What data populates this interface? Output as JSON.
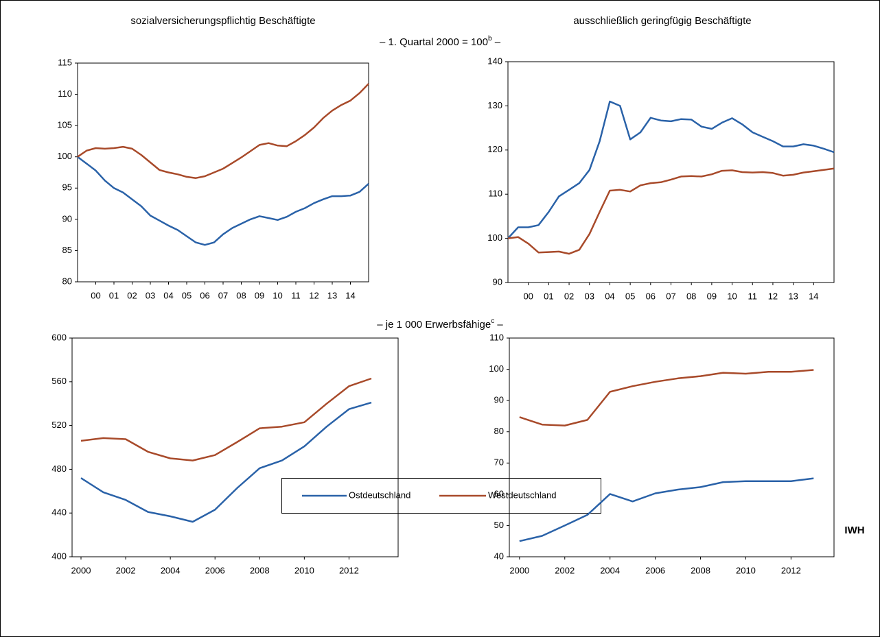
{
  "column_titles": [
    "sozialversicherungspflichtig Beschäftigte",
    "ausschließlich geringfügig Beschäftigte"
  ],
  "section_labels": [
    {
      "text": "– 1. Quartal 2000 = 100",
      "sup": "b",
      "tail": " –"
    },
    {
      "text": "– je 1 000 Erwerbsfähige",
      "sup": "c",
      "tail": " –"
    }
  ],
  "legend": [
    {
      "name": "Ostdeutschland",
      "color": "#2a62a8"
    },
    {
      "name": "Westdeutschland",
      "color": "#a84a2a"
    }
  ],
  "source": "IWH",
  "chart_data": [
    {
      "type": "line",
      "x": [
        0,
        0.5,
        1,
        1.5,
        2,
        2.5,
        3,
        3.5,
        4,
        4.5,
        5,
        5.5,
        6,
        6.5,
        7,
        7.5,
        8,
        8.5,
        9,
        9.5,
        10,
        10.5,
        11,
        11.5,
        12,
        12.5,
        13,
        13.5,
        14,
        14.5,
        15,
        15.5,
        16
      ],
      "xlim": [
        0,
        16
      ],
      "xticks": [
        {
          "value": 1,
          "label": "00"
        },
        {
          "value": 2,
          "label": "01"
        },
        {
          "value": 3,
          "label": "02"
        },
        {
          "value": 4,
          "label": "03"
        },
        {
          "value": 5,
          "label": "04"
        },
        {
          "value": 6,
          "label": "05"
        },
        {
          "value": 7,
          "label": "06"
        },
        {
          "value": 8,
          "label": "07"
        },
        {
          "value": 9,
          "label": "08"
        },
        {
          "value": 10,
          "label": "09"
        },
        {
          "value": 11,
          "label": "10"
        },
        {
          "value": 12,
          "label": "11"
        },
        {
          "value": 13,
          "label": "12"
        },
        {
          "value": 14,
          "label": "13"
        },
        {
          "value": 15,
          "label": "14"
        }
      ],
      "ylim": [
        80,
        115
      ],
      "yticks": [
        80,
        85,
        90,
        95,
        100,
        105,
        110,
        115
      ],
      "series": [
        {
          "color": "#2a62a8",
          "values": [
            100,
            98.9,
            97.8,
            96.2,
            95.0,
            94.3,
            93.2,
            92.1,
            90.6,
            89.8,
            89.0,
            88.3,
            87.3,
            86.3,
            85.9,
            86.3,
            87.6,
            88.6,
            89.3,
            90.0,
            90.5,
            90.2,
            89.9,
            90.4,
            91.2,
            91.8,
            92.6,
            93.2,
            93.7,
            93.7,
            93.8,
            94.4,
            95.7
          ]
        },
        {
          "color": "#a84a2a",
          "values": [
            100,
            101.0,
            101.4,
            101.3,
            101.4,
            101.6,
            101.3,
            100.3,
            99.1,
            97.9,
            97.5,
            97.2,
            96.8,
            96.6,
            96.9,
            97.5,
            98.1,
            99.0,
            99.9,
            100.9,
            101.9,
            102.2,
            101.8,
            101.7,
            102.5,
            103.5,
            104.7,
            106.2,
            107.4,
            108.3,
            109.0,
            110.2,
            111.7
          ]
        }
      ]
    },
    {
      "type": "line",
      "x": [
        0,
        0.5,
        1,
        1.5,
        2,
        2.5,
        3,
        3.5,
        4,
        4.5,
        5,
        5.5,
        6,
        6.5,
        7,
        7.5,
        8,
        8.5,
        9,
        9.5,
        10,
        10.5,
        11,
        11.5,
        12,
        12.5,
        13,
        13.5,
        14,
        14.5,
        15,
        15.5,
        16
      ],
      "xlim": [
        0,
        16
      ],
      "xticks": [
        {
          "value": 1,
          "label": "00"
        },
        {
          "value": 2,
          "label": "01"
        },
        {
          "value": 3,
          "label": "02"
        },
        {
          "value": 4,
          "label": "03"
        },
        {
          "value": 5,
          "label": "04"
        },
        {
          "value": 6,
          "label": "05"
        },
        {
          "value": 7,
          "label": "06"
        },
        {
          "value": 8,
          "label": "07"
        },
        {
          "value": 9,
          "label": "08"
        },
        {
          "value": 10,
          "label": "09"
        },
        {
          "value": 11,
          "label": "10"
        },
        {
          "value": 12,
          "label": "11"
        },
        {
          "value": 13,
          "label": "12"
        },
        {
          "value": 14,
          "label": "13"
        },
        {
          "value": 15,
          "label": "14"
        }
      ],
      "ylim": [
        90,
        140
      ],
      "yticks": [
        90,
        100,
        110,
        120,
        130,
        140
      ],
      "series": [
        {
          "color": "#2a62a8",
          "values": [
            100,
            102.5,
            102.5,
            103,
            106,
            109.5,
            111,
            112.5,
            115.5,
            122,
            131,
            130,
            122.4,
            124,
            127.3,
            126.7,
            126.5,
            127,
            126.9,
            125.3,
            124.8,
            126.2,
            127.2,
            125.8,
            124,
            123,
            122,
            120.8,
            120.8,
            121.3,
            121,
            120.3,
            119.5
          ]
        },
        {
          "color": "#a84a2a",
          "values": [
            100,
            100.3,
            98.8,
            96.8,
            96.9,
            97,
            96.5,
            97.4,
            101,
            106,
            110.8,
            111,
            110.6,
            112,
            112.5,
            112.7,
            113.3,
            114,
            114.1,
            114,
            114.5,
            115.3,
            115.4,
            115,
            114.9,
            115,
            114.8,
            114.2,
            114.4,
            114.9,
            115.2,
            115.5,
            115.8
          ]
        }
      ]
    },
    {
      "type": "line",
      "x": [
        2000,
        2001,
        2002,
        2003,
        2004,
        2005,
        2006,
        2007,
        2008,
        2009,
        2010,
        2011,
        2012,
        2013
      ],
      "xlim": [
        1999.6,
        2014.2
      ],
      "xticks": [
        2000,
        2002,
        2004,
        2006,
        2008,
        2010,
        2012
      ],
      "ylim": [
        400,
        600
      ],
      "yticks": [
        400,
        440,
        480,
        520,
        560,
        600
      ],
      "series": [
        {
          "color": "#2a62a8",
          "values": [
            472,
            459,
            452,
            441,
            437,
            432,
            443,
            463,
            481,
            488,
            501,
            519,
            535,
            541
          ]
        },
        {
          "color": "#a84a2a",
          "values": [
            506,
            508.5,
            507.5,
            496,
            490,
            488,
            493,
            505,
            517.5,
            519,
            523,
            540,
            556,
            563
          ]
        }
      ]
    },
    {
      "type": "line",
      "x": [
        2000,
        2001,
        2002,
        2003,
        2004,
        2005,
        2006,
        2007,
        2008,
        2009,
        2010,
        2011,
        2012,
        2013
      ],
      "xlim": [
        1999.55,
        2013.9
      ],
      "xticks": [
        2000,
        2002,
        2004,
        2006,
        2008,
        2010,
        2012
      ],
      "ylim": [
        40,
        110
      ],
      "yticks": [
        40,
        50,
        60,
        70,
        80,
        90,
        100,
        110
      ],
      "series": [
        {
          "color": "#2a62a8",
          "values": [
            45,
            46.7,
            50,
            53.4,
            60.1,
            57.7,
            60.3,
            61.5,
            62.3,
            63.9,
            64.2,
            64.2,
            64.2,
            65.1
          ]
        },
        {
          "color": "#a84a2a",
          "values": [
            84.7,
            82.3,
            82.0,
            83.8,
            92.8,
            94.6,
            96.0,
            97.1,
            97.8,
            98.9,
            98.6,
            99.2,
            99.2,
            99.8
          ]
        }
      ]
    }
  ]
}
